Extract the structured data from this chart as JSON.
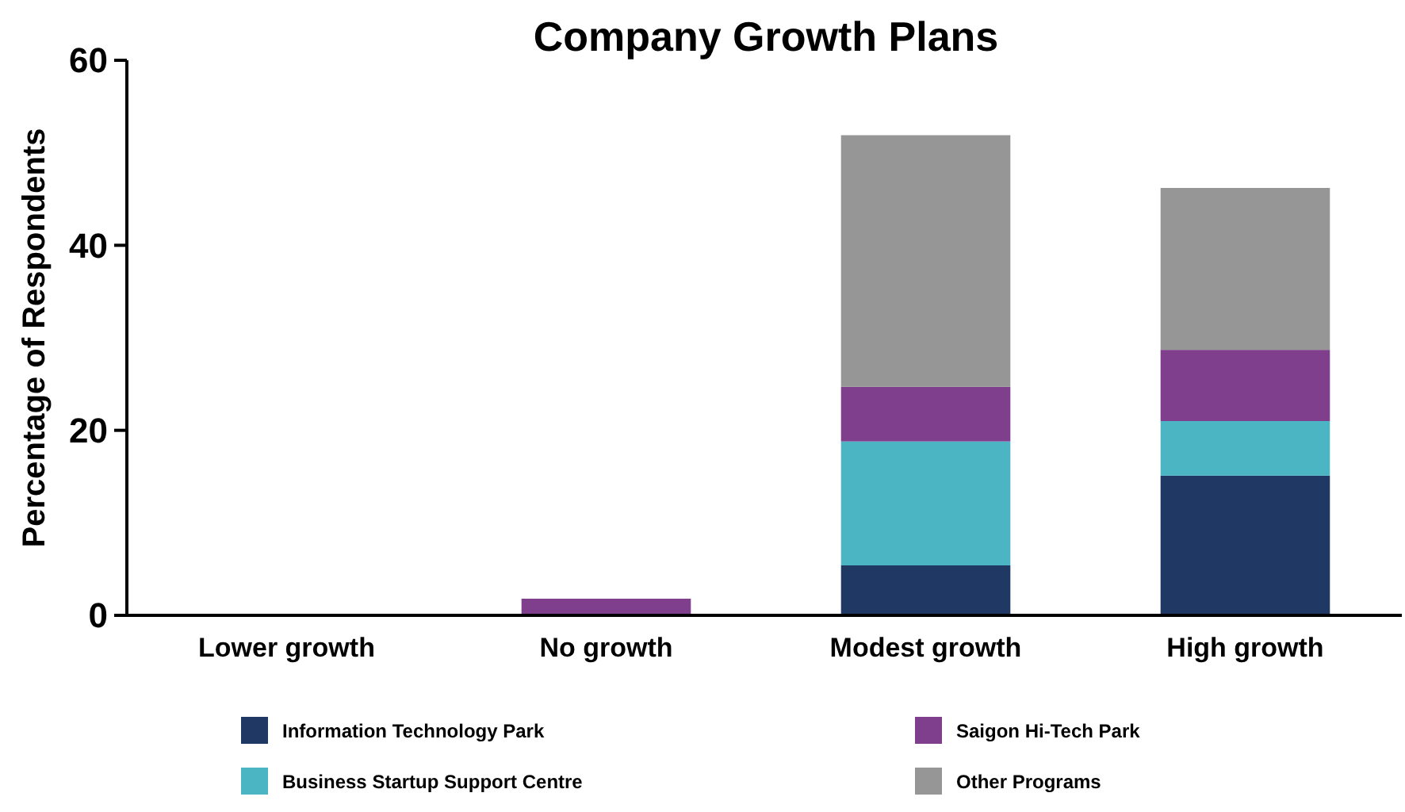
{
  "chart_data": {
    "type": "bar",
    "title": "Company Growth Plans",
    "ylabel": "Percentage of Respondents",
    "categories": [
      "Lower growth",
      "No growth",
      "Modest growth",
      "High growth"
    ],
    "stacked": true,
    "legend": "bottom",
    "grid": false,
    "ylim": [
      0,
      60
    ],
    "yticks": [
      0,
      20,
      40,
      60
    ],
    "series": [
      {
        "name": "Information Technology Park",
        "color": "#203864",
        "values": [
          0,
          0,
          5.4,
          15.1
        ]
      },
      {
        "name": "Business Startup Support Centre",
        "color": "#4bb5c4",
        "values": [
          0,
          0,
          13.4,
          5.9
        ]
      },
      {
        "name": "Saigon Hi-Tech Park",
        "color": "#7f3f8c",
        "values": [
          0,
          1.8,
          5.9,
          7.7
        ]
      },
      {
        "name": "Other Programs",
        "color": "#969696",
        "values": [
          0,
          0,
          27.2,
          17.5
        ]
      }
    ]
  }
}
